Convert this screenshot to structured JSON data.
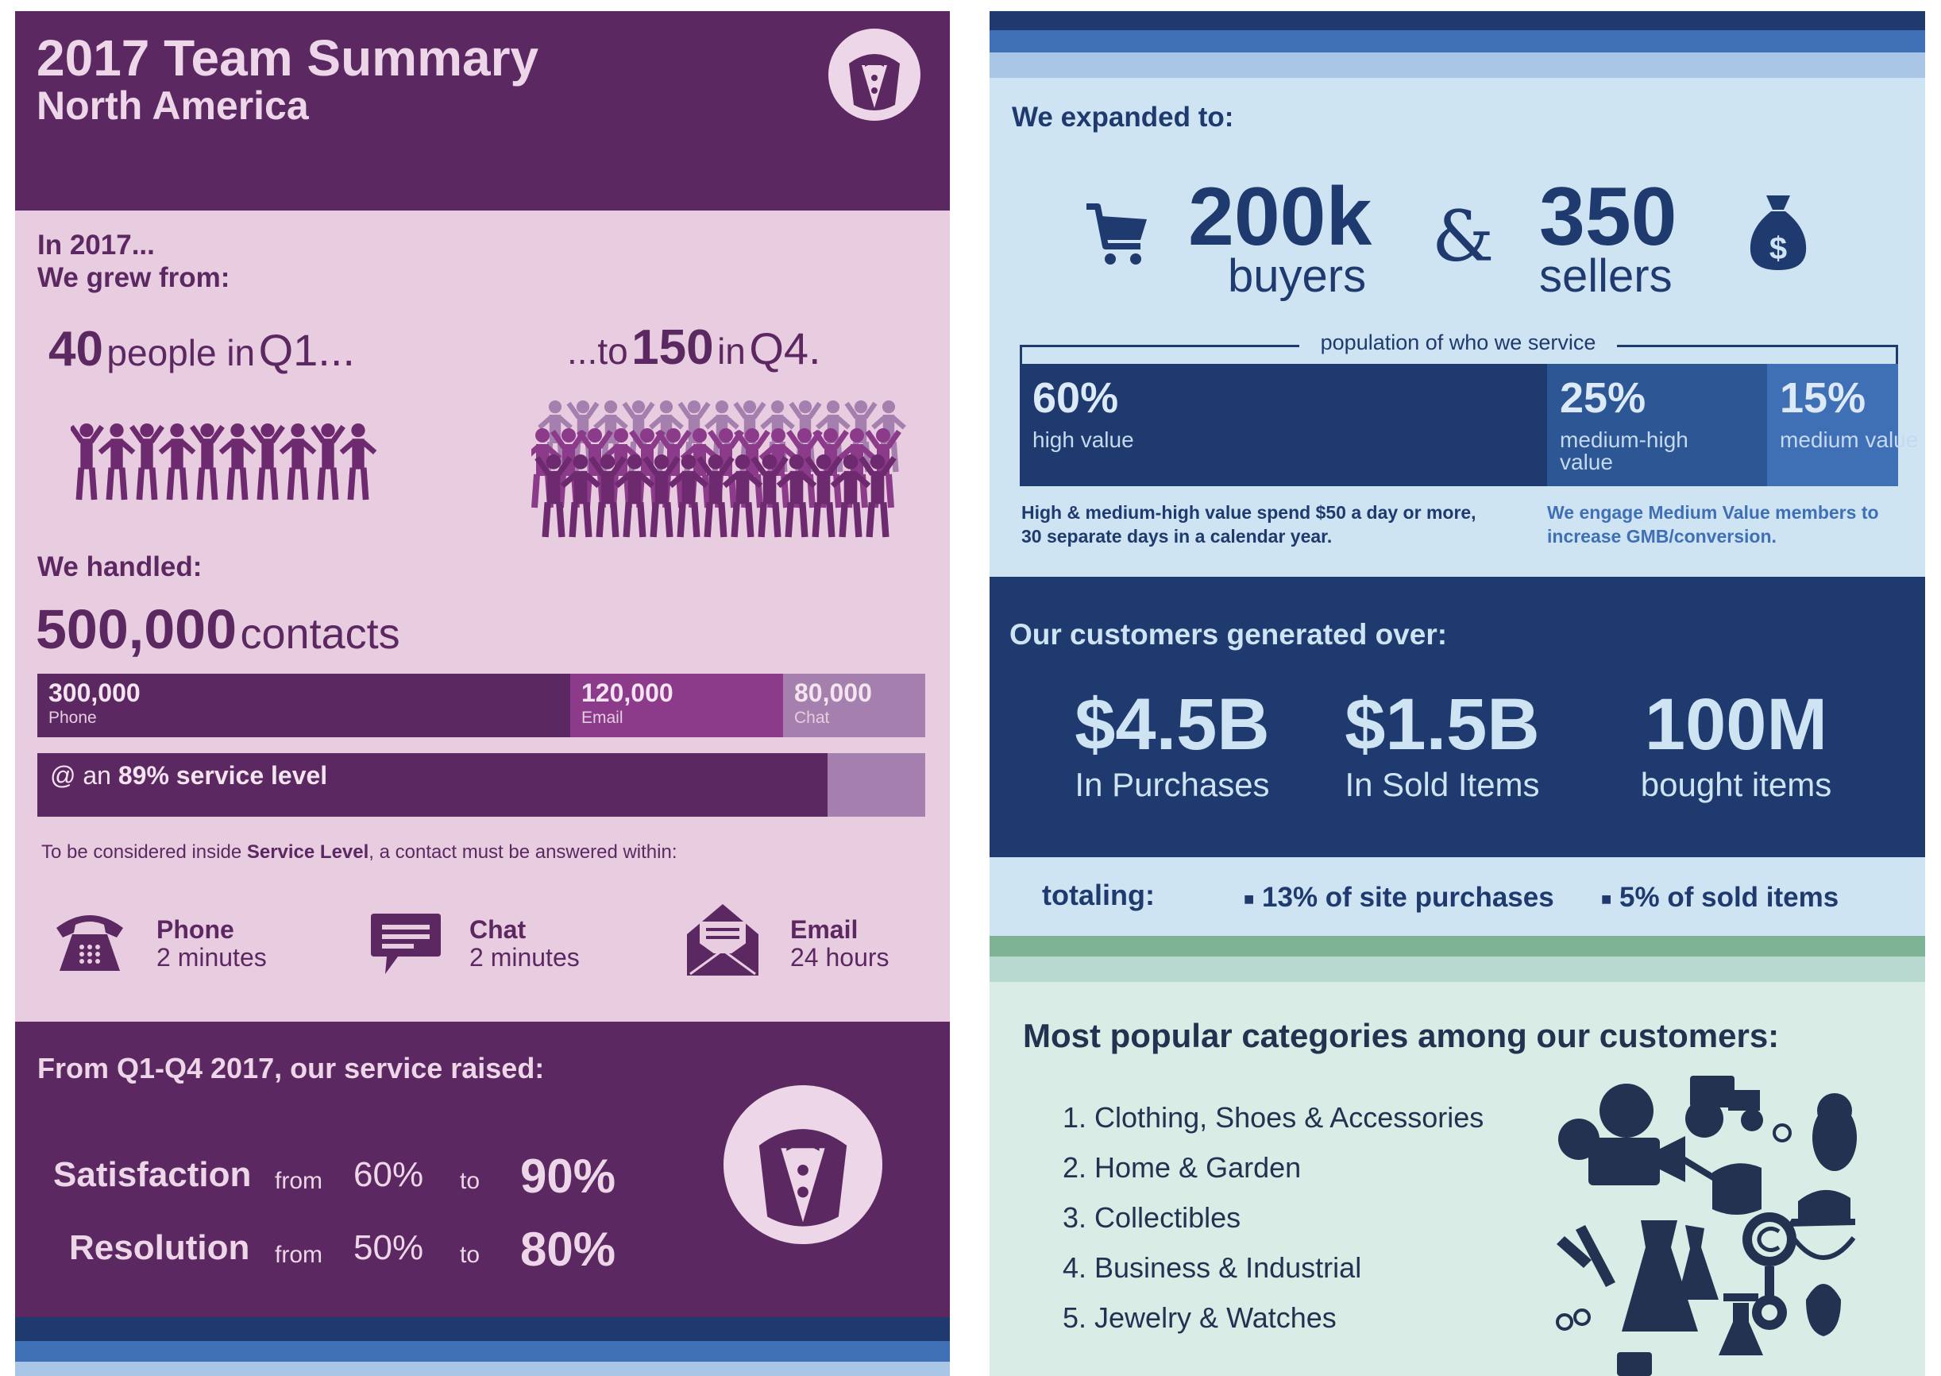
{
  "left": {
    "title": "2017 Team Summary",
    "subtitle": "North America",
    "intro1": "In 2017...",
    "intro2": "We grew from:",
    "growth": {
      "start_num": "40",
      "start_text": "people in",
      "start_q": "Q1...",
      "end_pre": "...to",
      "end_num": "150",
      "end_text": "in",
      "end_q": "Q4."
    },
    "handled_label": "We handled:",
    "contacts_num": "500,000",
    "contacts_label": "contacts",
    "contacts_breakdown": [
      {
        "value": "300,000",
        "label": "Phone",
        "share": 0.6,
        "color": "#5c2862"
      },
      {
        "value": "120,000",
        "label": "Email",
        "share": 0.24,
        "color": "#8c3a8a"
      },
      {
        "value": "80,000",
        "label": "Chat",
        "share": 0.16,
        "color": "#a57fae"
      }
    ],
    "service_level": {
      "prefix": "@ an",
      "value": "89% service level",
      "fraction": 0.89
    },
    "sl_note": {
      "pre": "To be considered inside",
      "bold": "Service Level",
      "post": ", a contact must be answered within:"
    },
    "channels": [
      {
        "name": "Phone",
        "time": "2 minutes",
        "icon": "phone-icon"
      },
      {
        "name": "Chat",
        "time": "2 minutes",
        "icon": "chat-icon"
      },
      {
        "name": "Email",
        "time": "24 hours",
        "icon": "envelope-icon"
      }
    ],
    "raised_title": "From Q1-Q4 2017, our service raised:",
    "metrics": [
      {
        "name": "Satisfaction",
        "from_word": "from",
        "from": "60%",
        "to_word": "to",
        "to": "90%"
      },
      {
        "name": "Resolution",
        "from_word": "from",
        "from": "50%",
        "to_word": "to",
        "to": "80%"
      }
    ],
    "logo_icon": "tuxedo-icon",
    "colors": {
      "dark": "#5c2862",
      "light": "#e8cde1"
    }
  },
  "right": {
    "expanded_label": "We expanded to:",
    "buyers_num": "200k",
    "buyers_label": "buyers",
    "amp": "&",
    "sellers_num": "350",
    "sellers_label": "sellers",
    "population_label": "population of who we service",
    "population": [
      {
        "pct": "60%",
        "label": "high value",
        "share": 0.6,
        "color": "#1e3a6e"
      },
      {
        "pct": "25%",
        "label": "medium-high value",
        "share": 0.25,
        "color": "#2d5694"
      },
      {
        "pct": "15%",
        "label": "medium value",
        "share": 0.15,
        "color": "#3f6fb5"
      }
    ],
    "note_left": "High & medium-high value spend $50 a day or more, 30 separate days in a calendar year.",
    "note_right": "We engage Medium Value members to increase GMB/conversion.",
    "generated_label": "Our customers generated over:",
    "generated": [
      {
        "value": "$4.5B",
        "label": "In Purchases"
      },
      {
        "value": "$1.5B",
        "label": "In Sold Items"
      },
      {
        "value": "100M",
        "label": "bought items"
      }
    ],
    "totaling_label": "totaling:",
    "totaling_items": [
      "13% of site purchases",
      "5% of sold items"
    ],
    "categories_title": "Most popular categories among our customers:",
    "categories": [
      "1. Clothing, Shoes & Accessories",
      "2. Home & Garden",
      "3. Collectibles",
      "4. Business & Industrial",
      "5. Jewelry & Watches"
    ],
    "icons": [
      "cart-icon",
      "money-bag-icon",
      "category-collage-icon"
    ],
    "colors": {
      "navy": "#1e3a6e",
      "light": "#cfe4f3",
      "mint": "#d9ece6"
    }
  }
}
